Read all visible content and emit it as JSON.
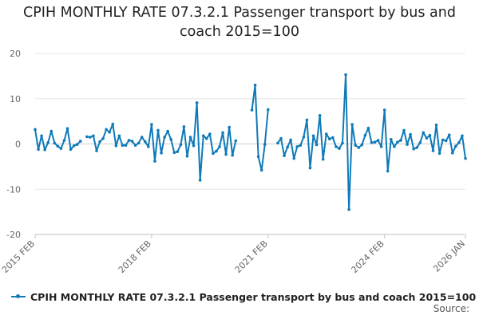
{
  "chart_data": {
    "type": "line",
    "title": "CPIH MONTHLY RATE 07.3.2.1 Passenger transport by bus and coach 2015=100",
    "xlabel": "",
    "ylabel": "",
    "ylim": [
      -20,
      20
    ],
    "yticks": [
      -20,
      -10,
      0,
      10,
      20
    ],
    "xtick_labels": [
      "2015 FEB",
      "2018 FEB",
      "2021 FEB",
      "2024 FEB",
      "2026 JAN"
    ],
    "grid": true,
    "legend_position": "bottom-left",
    "series": [
      {
        "name": "CPIH MONTHLY RATE 07.3.2.1 Passenger transport by bus and coach 2015=100",
        "color": "#0f7ab8",
        "x_start": "2015 FEB",
        "x_end": "2026 JAN",
        "values": [
          3.2,
          -1.2,
          1.8,
          -1.3,
          0.3,
          2.8,
          0.2,
          -0.5,
          -1.0,
          0.8,
          3.4,
          -1.2,
          -0.4,
          -0.1,
          0.6,
          null,
          1.6,
          1.5,
          1.8,
          -1.5,
          0.5,
          1.2,
          3.2,
          2.6,
          4.4,
          -0.4,
          1.8,
          -0.3,
          -0.3,
          0.8,
          0.6,
          -0.3,
          0.2,
          1.5,
          0.5,
          -0.6,
          4.3,
          -3.8,
          3.0,
          -2.0,
          1.5,
          2.8,
          1.0,
          -1.9,
          -1.7,
          -0.2,
          3.8,
          -2.7,
          1.5,
          -0.4,
          9.1,
          -8.0,
          1.8,
          1.2,
          2.2,
          -2.1,
          -1.6,
          -0.6,
          2.5,
          -2.3,
          3.7,
          -2.5,
          0.7,
          null,
          null,
          null,
          null,
          7.5,
          13.0,
          -2.8,
          -5.8,
          -0.1,
          7.6,
          null,
          null,
          0.2,
          1.2,
          -2.6,
          -0.7,
          0.9,
          -3.2,
          -0.6,
          -0.3,
          1.5,
          5.3,
          -5.3,
          1.8,
          -0.2,
          6.3,
          -3.4,
          2.2,
          1.1,
          1.4,
          -0.6,
          -1.0,
          0.2,
          15.3,
          -14.5,
          4.3,
          -0.3,
          -0.8,
          -0.2,
          1.9,
          3.5,
          0.3,
          0.4,
          0.8,
          -0.6,
          7.5,
          -6.0,
          1.0,
          -0.6,
          0.4,
          0.8,
          3.0,
          -0.1,
          2.1,
          -1.1,
          -0.8,
          0.3,
          2.5,
          1.3,
          1.9,
          -1.5,
          4.2,
          -2.1,
          0.9,
          0.7,
          2.0,
          -2.0,
          -0.5,
          0.3,
          1.8,
          -3.2
        ]
      }
    ]
  },
  "legend": {
    "label": "CPIH MONTHLY RATE 07.3.2.1 Passenger transport by bus and coach 2015=100"
  },
  "credit": "Source:"
}
